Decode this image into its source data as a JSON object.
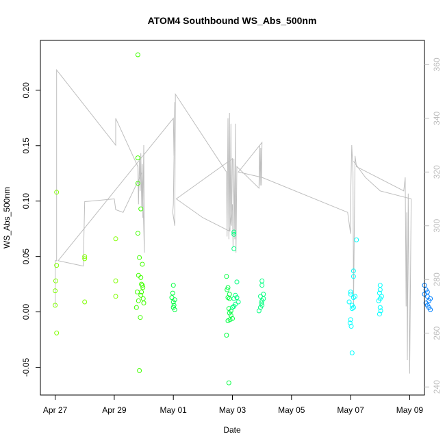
{
  "chart_data": {
    "type": "scatter",
    "title": "ATOM4 Southbound WS_Abs_500nm",
    "xlabel": "Date",
    "ylabel": "WS_Abs_500nm",
    "x_unit": "days since Apr 27",
    "xlim": [
      -0.5,
      12.5
    ],
    "ylim": [
      -0.075,
      0.245
    ],
    "y2lim": [
      237,
      369
    ],
    "x_ticks": [
      {
        "value": 0,
        "label": "Apr 27"
      },
      {
        "value": 2,
        "label": "Apr 29"
      },
      {
        "value": 4,
        "label": "May 01"
      },
      {
        "value": 6,
        "label": "May 03"
      },
      {
        "value": 8,
        "label": "May 05"
      },
      {
        "value": 10,
        "label": "May 07"
      },
      {
        "value": 12,
        "label": "May 09"
      }
    ],
    "y_ticks": [
      {
        "value": -0.05,
        "label": "-0.05"
      },
      {
        "value": 0.0,
        "label": "0.00"
      },
      {
        "value": 0.05,
        "label": "0.05"
      },
      {
        "value": 0.1,
        "label": "0.10"
      },
      {
        "value": 0.15,
        "label": "0.15"
      },
      {
        "value": 0.2,
        "label": "0.20"
      }
    ],
    "y2_ticks": [
      {
        "value": 240,
        "label": "240"
      },
      {
        "value": 260,
        "label": "260"
      },
      {
        "value": 280,
        "label": "280"
      },
      {
        "value": 300,
        "label": "300"
      },
      {
        "value": 320,
        "label": "320"
      },
      {
        "value": 340,
        "label": "340"
      },
      {
        "value": 360,
        "label": "360"
      }
    ],
    "line_color": "#bebebe",
    "secondary_line": [
      [
        0.0,
        270
      ],
      [
        0.0,
        287
      ],
      [
        0.05,
        287
      ],
      [
        0.05,
        358
      ],
      [
        2.05,
        330
      ],
      [
        2.05,
        340
      ],
      [
        2.8,
        322
      ],
      [
        2.82,
        308
      ],
      [
        2.85,
        325
      ],
      [
        2.88,
        313
      ],
      [
        2.9,
        327
      ],
      [
        2.93,
        307
      ],
      [
        2.95,
        323
      ],
      [
        2.97,
        303
      ],
      [
        3.0,
        330
      ],
      [
        3.02,
        290
      ],
      [
        2.95,
        320
      ],
      [
        2.3,
        305
      ],
      [
        2.05,
        306
      ],
      [
        2.0,
        310
      ],
      [
        1.0,
        309
      ],
      [
        0.95,
        285
      ],
      [
        0.95,
        285
      ],
      [
        0.1,
        287
      ],
      [
        4.0,
        340
      ],
      [
        4.02,
        326
      ],
      [
        4.05,
        346
      ],
      [
        4.0,
        308
      ],
      [
        3.98,
        305
      ],
      [
        4.05,
        300
      ],
      [
        4.07,
        349
      ],
      [
        5.8,
        320
      ],
      [
        5.82,
        296
      ],
      [
        5.85,
        340
      ],
      [
        5.88,
        295
      ],
      [
        5.9,
        342
      ],
      [
        5.92,
        298
      ],
      [
        5.95,
        338
      ],
      [
        5.97,
        300
      ],
      [
        6.0,
        325
      ],
      [
        4.1,
        310
      ],
      [
        5.0,
        303
      ],
      [
        5.9,
        298
      ],
      [
        6.0,
        308
      ],
      [
        6.02,
        292
      ],
      [
        6.05,
        325
      ],
      [
        6.08,
        295
      ],
      [
        6.1,
        338
      ],
      [
        6.12,
        290
      ],
      [
        6.15,
        322
      ],
      [
        6.9,
        314
      ],
      [
        6.92,
        330
      ],
      [
        6.94,
        315
      ],
      [
        6.96,
        329
      ],
      [
        6.98,
        315
      ],
      [
        7.0,
        331
      ],
      [
        6.2,
        320
      ],
      [
        7.0,
        318
      ],
      [
        9.9,
        305
      ],
      [
        10.0,
        297
      ],
      [
        10.0,
        310
      ],
      [
        10.04,
        330
      ],
      [
        10.08,
        320
      ],
      [
        10.1,
        270
      ],
      [
        10.15,
        326
      ],
      [
        10.2,
        322
      ],
      [
        11.8,
        313
      ],
      [
        11.85,
        318
      ],
      [
        11.88,
        270
      ],
      [
        11.9,
        305
      ],
      [
        11.92,
        250
      ],
      [
        11.95,
        312
      ],
      [
        12.0,
        245
      ],
      [
        12.05,
        310
      ],
      [
        11.0,
        313
      ],
      [
        10.5,
        318
      ],
      [
        10.1,
        324
      ]
    ],
    "series": [
      {
        "color": "#80ff00",
        "points": [
          [
            0.05,
            0.108
          ],
          [
            0.02,
            0.028
          ],
          [
            0.0,
            0.019
          ],
          [
            0.0,
            0.006
          ],
          [
            0.05,
            0.042
          ],
          [
            0.05,
            -0.019
          ],
          [
            1.0,
            0.05
          ],
          [
            1.0,
            0.048
          ],
          [
            1.0,
            0.009
          ],
          [
            2.05,
            0.066
          ],
          [
            2.05,
            0.028
          ],
          [
            2.05,
            0.014
          ]
        ]
      },
      {
        "color": "#40ff00",
        "points": [
          [
            2.8,
            0.232
          ],
          [
            2.8,
            0.139
          ],
          [
            2.8,
            0.116
          ],
          [
            2.8,
            0.071
          ],
          [
            2.9,
            0.093
          ],
          [
            2.85,
            0.049
          ],
          [
            2.82,
            0.033
          ],
          [
            2.9,
            0.031
          ],
          [
            2.95,
            0.043
          ],
          [
            2.92,
            0.025
          ],
          [
            2.95,
            0.024
          ],
          [
            2.97,
            0.022
          ],
          [
            2.78,
            0.018
          ],
          [
            2.92,
            0.018
          ],
          [
            2.9,
            0.015
          ],
          [
            2.98,
            0.012
          ],
          [
            2.82,
            0.01
          ],
          [
            3.0,
            0.008
          ],
          [
            2.75,
            0.004
          ],
          [
            2.88,
            -0.005
          ],
          [
            2.85,
            -0.053
          ]
        ]
      },
      {
        "color": "#00ff40",
        "points": [
          [
            4.0,
            0.024
          ],
          [
            3.98,
            0.017
          ],
          [
            3.95,
            0.013
          ],
          [
            4.05,
            0.011
          ],
          [
            4.0,
            0.009
          ],
          [
            4.02,
            0.006
          ],
          [
            4.0,
            0.004
          ],
          [
            4.05,
            0.002
          ],
          [
            5.8,
            0.032
          ],
          [
            5.85,
            0.022
          ],
          [
            5.82,
            0.02
          ],
          [
            5.9,
            0.016
          ],
          [
            5.85,
            0.013
          ],
          [
            5.9,
            0.012
          ],
          [
            5.88,
            0.003
          ],
          [
            5.95,
            0.001
          ],
          [
            5.9,
            -0.001
          ],
          [
            5.95,
            -0.003
          ],
          [
            6.0,
            -0.006
          ],
          [
            5.92,
            -0.007
          ],
          [
            5.85,
            -0.008
          ],
          [
            5.8,
            -0.021
          ],
          [
            5.88,
            -0.064
          ]
        ]
      },
      {
        "color": "#00ff80",
        "points": [
          [
            6.05,
            0.072
          ],
          [
            6.05,
            0.07
          ],
          [
            6.05,
            0.057
          ],
          [
            6.15,
            0.027
          ],
          [
            6.1,
            0.015
          ],
          [
            6.15,
            0.013
          ],
          [
            6.05,
            0.012
          ],
          [
            6.2,
            0.009
          ],
          [
            6.1,
            0.007
          ],
          [
            6.05,
            0.005
          ],
          [
            6.0,
            0.004
          ],
          [
            7.0,
            0.028
          ],
          [
            7.0,
            0.024
          ],
          [
            7.05,
            0.016
          ],
          [
            6.95,
            0.014
          ],
          [
            7.05,
            0.012
          ],
          [
            7.0,
            0.01
          ],
          [
            6.98,
            0.008
          ],
          [
            7.0,
            0.006
          ],
          [
            6.95,
            0.004
          ],
          [
            6.9,
            0.001
          ]
        ]
      },
      {
        "color": "#00ffff",
        "points": [
          [
            10.2,
            0.065
          ],
          [
            10.1,
            0.037
          ],
          [
            10.1,
            0.032
          ],
          [
            10.0,
            0.018
          ],
          [
            10.0,
            0.016
          ],
          [
            10.15,
            0.014
          ],
          [
            10.1,
            0.013
          ],
          [
            9.95,
            0.009
          ],
          [
            10.05,
            0.006
          ],
          [
            10.1,
            0.004
          ],
          [
            10.05,
            0.003
          ],
          [
            10.0,
            -0.007
          ],
          [
            9.98,
            -0.01
          ],
          [
            10.02,
            -0.013
          ],
          [
            10.05,
            -0.037
          ],
          [
            11.0,
            0.024
          ],
          [
            11.0,
            0.02
          ],
          [
            10.98,
            0.017
          ],
          [
            11.05,
            0.014
          ],
          [
            11.0,
            0.012
          ],
          [
            10.95,
            0.01
          ],
          [
            11.0,
            0.004
          ],
          [
            11.02,
            0.001
          ],
          [
            10.98,
            -0.002
          ]
        ]
      },
      {
        "color": "#0080ff",
        "points": [
          [
            12.5,
            0.024
          ],
          [
            12.55,
            0.02
          ],
          [
            12.6,
            0.018
          ],
          [
            12.5,
            0.016
          ],
          [
            12.6,
            0.014
          ],
          [
            12.7,
            0.012
          ],
          [
            12.65,
            0.01
          ],
          [
            12.55,
            0.008
          ],
          [
            12.6,
            0.006
          ],
          [
            12.65,
            0.004
          ],
          [
            12.7,
            0.002
          ]
        ]
      }
    ]
  }
}
